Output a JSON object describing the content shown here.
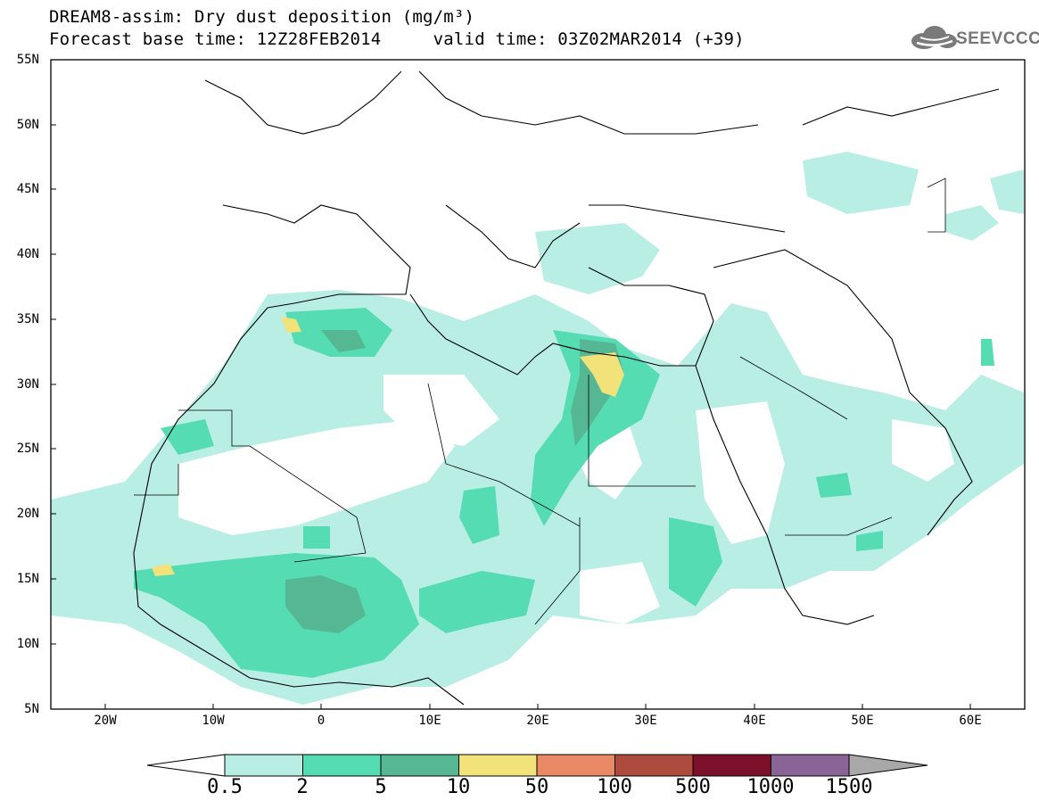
{
  "header": {
    "title_line1": "DREAM8-assim: Dry dust deposition (mg/m³)",
    "title_line2": "Forecast base time: 12Z28FEB2014     valid time: 03Z02MAR2014 (+39)"
  },
  "logo": {
    "text": "SEEVCCC",
    "icon": "cloud-icon"
  },
  "map": {
    "lat_labels": [
      "55N",
      "50N",
      "45N",
      "40N",
      "35N",
      "30N",
      "25N",
      "20N",
      "15N",
      "10N",
      "5N"
    ],
    "lon_labels": [
      "20W",
      "10W",
      "0",
      "10E",
      "20E",
      "30E",
      "40E",
      "50E",
      "60E"
    ],
    "lat_range": [
      5,
      55
    ],
    "lon_range": [
      -25,
      65
    ]
  },
  "legend": {
    "labels": [
      "0.5",
      "2",
      "5",
      "10",
      "50",
      "100",
      "500",
      "1000",
      "1500"
    ],
    "colors": [
      "#b9eee4",
      "#55dcb3",
      "#56b795",
      "#f2e27a",
      "#e98a65",
      "#ad4b3e",
      "#7c0f2a",
      "#8b6497"
    ],
    "low_arrow_color": "#ffffff",
    "high_arrow_color": "#a8a8a8"
  }
}
